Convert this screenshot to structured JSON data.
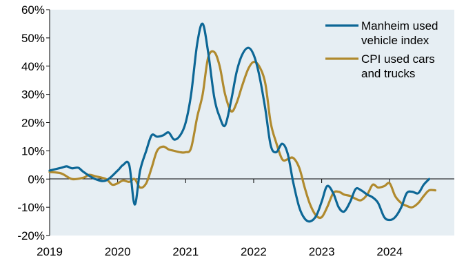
{
  "chart_data": {
    "type": "line",
    "title": "",
    "xlabel": "",
    "ylabel": "",
    "ylim": [
      -20,
      60
    ],
    "xlim": [
      2019.0,
      2024.95
    ],
    "grid": false,
    "legend_position": "top-right",
    "y_ticks": [
      -20,
      -10,
      0,
      10,
      20,
      30,
      40,
      50,
      60
    ],
    "y_tick_labels": [
      "-20%",
      "-10%",
      "0%",
      "10%",
      "20%",
      "30%",
      "40%",
      "50%",
      "60%"
    ],
    "x_ticks": [
      2019,
      2020,
      2021,
      2022,
      2023,
      2024
    ],
    "x_tick_labels": [
      "2019",
      "2020",
      "2021",
      "2022",
      "2023",
      "2024"
    ],
    "colors": {
      "plot_background": "#e6eef3",
      "axis": "#000000"
    },
    "series": [
      {
        "name_lines": [
          "Manheim used",
          "vehicle index"
        ],
        "color": "#0d6796",
        "points": [
          [
            2019.0,
            3
          ],
          [
            2019.17,
            4
          ],
          [
            2019.25,
            4.5
          ],
          [
            2019.33,
            3.8
          ],
          [
            2019.42,
            4
          ],
          [
            2019.5,
            2.5
          ],
          [
            2019.67,
            0
          ],
          [
            2019.83,
            -0.5
          ],
          [
            2020.0,
            3
          ],
          [
            2020.08,
            5
          ],
          [
            2020.17,
            5
          ],
          [
            2020.25,
            -9
          ],
          [
            2020.33,
            3
          ],
          [
            2020.42,
            10
          ],
          [
            2020.5,
            15.5
          ],
          [
            2020.58,
            15
          ],
          [
            2020.67,
            15.5
          ],
          [
            2020.75,
            16.5
          ],
          [
            2020.83,
            14
          ],
          [
            2020.92,
            15.5
          ],
          [
            2021.0,
            20
          ],
          [
            2021.08,
            30
          ],
          [
            2021.17,
            48
          ],
          [
            2021.25,
            55
          ],
          [
            2021.33,
            45
          ],
          [
            2021.42,
            29
          ],
          [
            2021.5,
            22
          ],
          [
            2021.58,
            19
          ],
          [
            2021.67,
            28
          ],
          [
            2021.75,
            38
          ],
          [
            2021.83,
            44
          ],
          [
            2021.92,
            46.5
          ],
          [
            2022.0,
            44
          ],
          [
            2022.08,
            37
          ],
          [
            2022.17,
            25
          ],
          [
            2022.25,
            12
          ],
          [
            2022.33,
            9.5
          ],
          [
            2022.42,
            12.5
          ],
          [
            2022.5,
            9
          ],
          [
            2022.58,
            -1
          ],
          [
            2022.67,
            -10
          ],
          [
            2022.75,
            -14
          ],
          [
            2022.83,
            -15
          ],
          [
            2022.92,
            -13
          ],
          [
            2023.0,
            -8
          ],
          [
            2023.08,
            -2.5
          ],
          [
            2023.17,
            -5
          ],
          [
            2023.25,
            -10
          ],
          [
            2023.33,
            -11.5
          ],
          [
            2023.42,
            -8
          ],
          [
            2023.5,
            -3.5
          ],
          [
            2023.58,
            -4
          ],
          [
            2023.67,
            -5.5
          ],
          [
            2023.75,
            -6.5
          ],
          [
            2023.83,
            -8.5
          ],
          [
            2023.92,
            -13.5
          ],
          [
            2024.0,
            -14.5
          ],
          [
            2024.08,
            -13.5
          ],
          [
            2024.17,
            -10
          ],
          [
            2024.25,
            -5
          ],
          [
            2024.33,
            -4.5
          ],
          [
            2024.42,
            -5
          ],
          [
            2024.5,
            -2
          ],
          [
            2024.58,
            0
          ]
        ]
      },
      {
        "name_lines": [
          "CPI used cars",
          "and trucks"
        ],
        "color": "#b08a2e",
        "points": [
          [
            2019.0,
            2.5
          ],
          [
            2019.17,
            2
          ],
          [
            2019.33,
            0
          ],
          [
            2019.5,
            0.5
          ],
          [
            2019.58,
            1.5
          ],
          [
            2019.67,
            1
          ],
          [
            2019.83,
            0
          ],
          [
            2019.92,
            -2
          ],
          [
            2020.0,
            -1.5
          ],
          [
            2020.08,
            -0.5
          ],
          [
            2020.17,
            -1
          ],
          [
            2020.25,
            0
          ],
          [
            2020.33,
            -3
          ],
          [
            2020.42,
            -1.5
          ],
          [
            2020.5,
            4
          ],
          [
            2020.58,
            10
          ],
          [
            2020.67,
            11.5
          ],
          [
            2020.75,
            10.5
          ],
          [
            2020.83,
            10
          ],
          [
            2020.92,
            9.5
          ],
          [
            2021.0,
            9.5
          ],
          [
            2021.08,
            11
          ],
          [
            2021.17,
            22
          ],
          [
            2021.25,
            30
          ],
          [
            2021.33,
            43
          ],
          [
            2021.42,
            45
          ],
          [
            2021.5,
            40
          ],
          [
            2021.58,
            30
          ],
          [
            2021.67,
            24
          ],
          [
            2021.75,
            27
          ],
          [
            2021.83,
            33
          ],
          [
            2021.92,
            39
          ],
          [
            2022.0,
            41.5
          ],
          [
            2022.08,
            40
          ],
          [
            2022.17,
            34
          ],
          [
            2022.25,
            20
          ],
          [
            2022.33,
            13
          ],
          [
            2022.42,
            7
          ],
          [
            2022.5,
            7
          ],
          [
            2022.58,
            7.5
          ],
          [
            2022.67,
            4
          ],
          [
            2022.75,
            -3
          ],
          [
            2022.83,
            -9
          ],
          [
            2022.92,
            -13
          ],
          [
            2023.0,
            -13.5
          ],
          [
            2023.08,
            -10
          ],
          [
            2023.17,
            -5
          ],
          [
            2023.25,
            -4.5
          ],
          [
            2023.33,
            -5.5
          ],
          [
            2023.42,
            -6
          ],
          [
            2023.5,
            -7
          ],
          [
            2023.58,
            -7.5
          ],
          [
            2023.67,
            -5.5
          ],
          [
            2023.75,
            -2
          ],
          [
            2023.83,
            -3
          ],
          [
            2023.92,
            -2.5
          ],
          [
            2024.0,
            -1.5
          ],
          [
            2024.08,
            -6
          ],
          [
            2024.17,
            -8.5
          ],
          [
            2024.25,
            -9.5
          ],
          [
            2024.33,
            -10
          ],
          [
            2024.42,
            -8.5
          ],
          [
            2024.5,
            -6
          ],
          [
            2024.58,
            -4
          ],
          [
            2024.67,
            -4
          ]
        ]
      }
    ]
  }
}
